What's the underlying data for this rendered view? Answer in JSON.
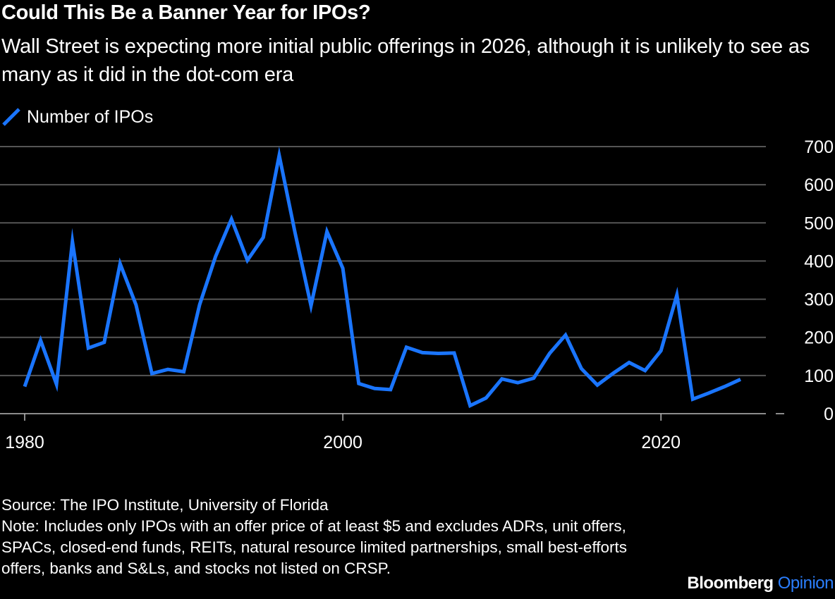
{
  "title": "Could This Be a Banner Year for IPOs?",
  "subtitle": "Wall Street is expecting more initial public offerings in 2026, although it is unlikely to see as many as it did in the dot-com era",
  "source": "Source: The IPO Institute, University of Florida",
  "note": "Note: Includes only IPOs with an offer price of at least $5 and excludes ADRs, unit offers, SPACs, closed-end funds, REITs, natural resource limited partnerships, small best-efforts offers, banks and S&Ls, and stocks not listed on CRSP.",
  "branding": {
    "name": "Bloomberg",
    "product": "Opinion"
  },
  "colors": {
    "background": "#000000",
    "line": "#1a75ff",
    "grid": "#555555",
    "text": "#ffffff",
    "brand_accent": "#2b7fff"
  },
  "chart_data": {
    "type": "line",
    "title": "Could This Be a Banner Year for IPOs?",
    "xlabel": "",
    "ylabel": "",
    "legend": "top-left",
    "grid": true,
    "xlim": [
      1980,
      2025
    ],
    "ylim": [
      0,
      700
    ],
    "x_ticks": [
      1980,
      2000,
      2020
    ],
    "y_ticks": [
      0,
      100,
      200,
      300,
      400,
      500,
      600,
      700
    ],
    "y_axis_side": "right",
    "series": [
      {
        "name": "Number of IPOs",
        "color": "#1a75ff",
        "x": [
          1980,
          1981,
          1982,
          1983,
          1984,
          1985,
          1986,
          1987,
          1988,
          1989,
          1990,
          1991,
          1992,
          1993,
          1994,
          1995,
          1996,
          1997,
          1998,
          1999,
          2000,
          2001,
          2002,
          2003,
          2004,
          2005,
          2006,
          2007,
          2008,
          2009,
          2010,
          2011,
          2012,
          2013,
          2014,
          2015,
          2016,
          2017,
          2018,
          2019,
          2020,
          2021,
          2022,
          2023,
          2024,
          2025
        ],
        "values": [
          71,
          192,
          77,
          451,
          172,
          187,
          393,
          285,
          105,
          116,
          110,
          286,
          412,
          510,
          402,
          462,
          677,
          474,
          283,
          477,
          381,
          79,
          66,
          63,
          174,
          160,
          158,
          159,
          21,
          41,
          91,
          81,
          93,
          158,
          206,
          118,
          75,
          106,
          134,
          113,
          165,
          311,
          38,
          54,
          71,
          90
        ]
      }
    ]
  }
}
